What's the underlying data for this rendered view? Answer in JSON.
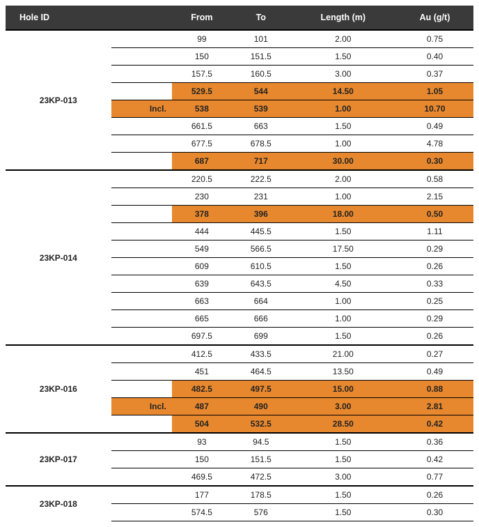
{
  "columns": {
    "hole_id": "Hole ID",
    "from": "From",
    "to": "To",
    "length": "Length (m)",
    "au": "Au (g/t)"
  },
  "incl_label": "Incl.",
  "highlight_color": "#e8882e",
  "header_bg": "#3a3a3a",
  "header_fg": "#ffffff",
  "groups": [
    {
      "hole_id": "23KP-013",
      "rows": [
        {
          "from": "99",
          "to": "101",
          "length": "2.00",
          "au": "0.75"
        },
        {
          "from": "150",
          "to": "151.5",
          "length": "1.50",
          "au": "0.40"
        },
        {
          "from": "157.5",
          "to": "160.5",
          "length": "3.00",
          "au": "0.37"
        },
        {
          "from": "529.5",
          "to": "544",
          "length": "14.50",
          "au": "1.05",
          "hl": true
        },
        {
          "from": "538",
          "to": "539",
          "length": "1.00",
          "au": "10.70",
          "hl": true,
          "incl": true
        },
        {
          "from": "661.5",
          "to": "663",
          "length": "1.50",
          "au": "0.49"
        },
        {
          "from": "677.5",
          "to": "678.5",
          "length": "1.00",
          "au": "4.78"
        },
        {
          "from": "687",
          "to": "717",
          "length": "30.00",
          "au": "0.30",
          "hl": true
        }
      ]
    },
    {
      "hole_id": "23KP-014",
      "rows": [
        {
          "from": "220.5",
          "to": "222.5",
          "length": "2.00",
          "au": "0.58"
        },
        {
          "from": "230",
          "to": "231",
          "length": "1.00",
          "au": "2.15"
        },
        {
          "from": "378",
          "to": "396",
          "length": "18.00",
          "au": "0.50",
          "hl": true
        },
        {
          "from": "444",
          "to": "445.5",
          "length": "1.50",
          "au": "1.11"
        },
        {
          "from": "549",
          "to": "566.5",
          "length": "17.50",
          "au": "0.29"
        },
        {
          "from": "609",
          "to": "610.5",
          "length": "1.50",
          "au": "0.26"
        },
        {
          "from": "639",
          "to": "643.5",
          "length": "4.50",
          "au": "0.33"
        },
        {
          "from": "663",
          "to": "664",
          "length": "1.00",
          "au": "0.25"
        },
        {
          "from": "665",
          "to": "666",
          "length": "1.00",
          "au": "0.29"
        },
        {
          "from": "697.5",
          "to": "699",
          "length": "1.50",
          "au": "0.26"
        }
      ]
    },
    {
      "hole_id": "23KP-016",
      "rows": [
        {
          "from": "412.5",
          "to": "433.5",
          "length": "21.00",
          "au": "0.27"
        },
        {
          "from": "451",
          "to": "464.5",
          "length": "13.50",
          "au": "0.49"
        },
        {
          "from": "482.5",
          "to": "497.5",
          "length": "15.00",
          "au": "0.88",
          "hl": true
        },
        {
          "from": "487",
          "to": "490",
          "length": "3.00",
          "au": "2.81",
          "hl": true,
          "incl": true
        },
        {
          "from": "504",
          "to": "532.5",
          "length": "28.50",
          "au": "0.42",
          "hl": true
        }
      ]
    },
    {
      "hole_id": "23KP-017",
      "rows": [
        {
          "from": "93",
          "to": "94.5",
          "length": "1.50",
          "au": "0.36"
        },
        {
          "from": "150",
          "to": "151.5",
          "length": "1.50",
          "au": "0.42"
        },
        {
          "from": "469.5",
          "to": "472.5",
          "length": "3.00",
          "au": "0.77"
        }
      ]
    },
    {
      "hole_id": "23KP-018",
      "rows": [
        {
          "from": "177",
          "to": "178.5",
          "length": "1.50",
          "au": "0.26"
        },
        {
          "from": "574.5",
          "to": "576",
          "length": "1.50",
          "au": "0.30"
        }
      ]
    }
  ]
}
